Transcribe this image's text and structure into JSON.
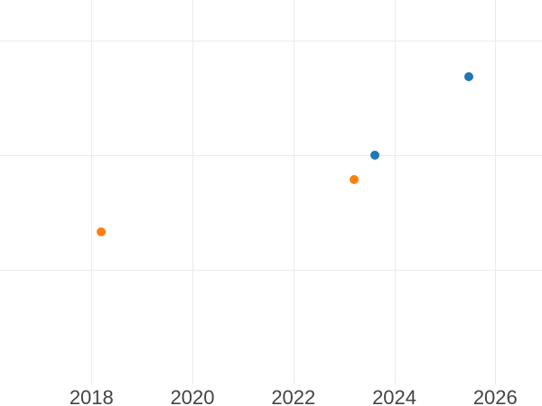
{
  "chart_data": {
    "type": "scatter",
    "title": "",
    "xlabel": "",
    "ylabel": "",
    "grid": true,
    "legend_visible": false,
    "background_color": "#ffffff",
    "gridline_color": "#ebebeb",
    "tick_label_color": "#444444",
    "marker_diameter_px": 10,
    "x_axis": {
      "tick_labels": [
        "2018",
        "2020",
        "2022",
        "2024",
        "2026"
      ],
      "tick_values": [
        2018,
        2020,
        2022,
        2024,
        2026
      ],
      "range_estimate": [
        2016.2,
        2026.9
      ]
    },
    "y_axis": {
      "tick_labels_visible": false,
      "gridline_values": [
        1,
        2,
        3
      ],
      "range_estimate": [
        0,
        3.36
      ],
      "note": "y tick labels not visible in image; values expressed in gridline units"
    },
    "series": [
      {
        "name": "blue-series",
        "color": "#1f77b4",
        "points": [
          {
            "x": 2023.61,
            "y": 2.0
          },
          {
            "x": 2025.48,
            "y": 2.69
          }
        ]
      },
      {
        "name": "orange-series",
        "color": "#ff7f0e",
        "points": [
          {
            "x": 2018.19,
            "y": 1.33
          },
          {
            "x": 2023.2,
            "y": 1.79
          }
        ]
      }
    ]
  }
}
